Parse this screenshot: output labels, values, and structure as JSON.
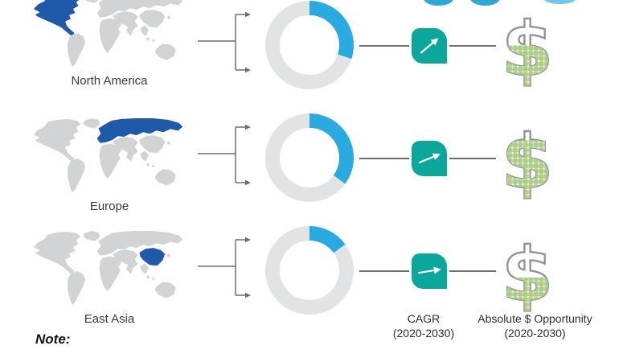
{
  "colors": {
    "map_land": "#D2D3D5",
    "map_highlight": "#1E5AA9",
    "donut_track": "#E2E3E4",
    "donut_value": "#29ABE2",
    "connector": "#6D6E71",
    "cagr_box": "#0CA79B",
    "dollar_outline": "#939598",
    "dollar_green": "#A5C97B",
    "logo_blue_dark": "#2FA8D6",
    "logo_blue_light": "#72C7E7"
  },
  "top_cropped_logo": {
    "shape_colors": [
      "#2FA8D6",
      "#2FA8D6",
      "#72C7E7"
    ]
  },
  "rows": [
    {
      "label": "North America",
      "highlight_region": "northamerica",
      "donut_highlight_pct": 30,
      "cagr_arrow_angle_deg": -40,
      "dollar_fill_pct": 55
    },
    {
      "label": "Europe",
      "highlight_region": "eurasia",
      "donut_highlight_pct": 35,
      "cagr_arrow_angle_deg": -22,
      "dollar_fill_pct": 80
    },
    {
      "label": "East Asia",
      "highlight_region": "eastasia",
      "donut_highlight_pct": 15,
      "cagr_arrow_angle_deg": -9,
      "dollar_fill_pct": 45
    }
  ],
  "footer": {
    "cagr_label": "CAGR",
    "cagr_period": "(2020-2030)",
    "opportunity_label": "Absolute $ Opportunity",
    "opportunity_period": "(2020-2030)"
  },
  "note": {
    "label": "Note:"
  },
  "icons": {
    "growth": "trending-up-arrow-icon",
    "opportunity": "dollar-sign-icon",
    "map": "world-map",
    "donut": "donut-chart",
    "split": "split-arrows-connector"
  },
  "chart_data": [
    {
      "type": "pie",
      "title": "North America donut",
      "categories": [
        "highlighted share",
        "remainder"
      ],
      "values": [
        30,
        70
      ]
    },
    {
      "type": "pie",
      "title": "Europe donut",
      "categories": [
        "highlighted share",
        "remainder"
      ],
      "values": [
        35,
        65
      ]
    },
    {
      "type": "pie",
      "title": "East Asia donut",
      "categories": [
        "highlighted share",
        "remainder"
      ],
      "values": [
        15,
        85
      ]
    }
  ]
}
